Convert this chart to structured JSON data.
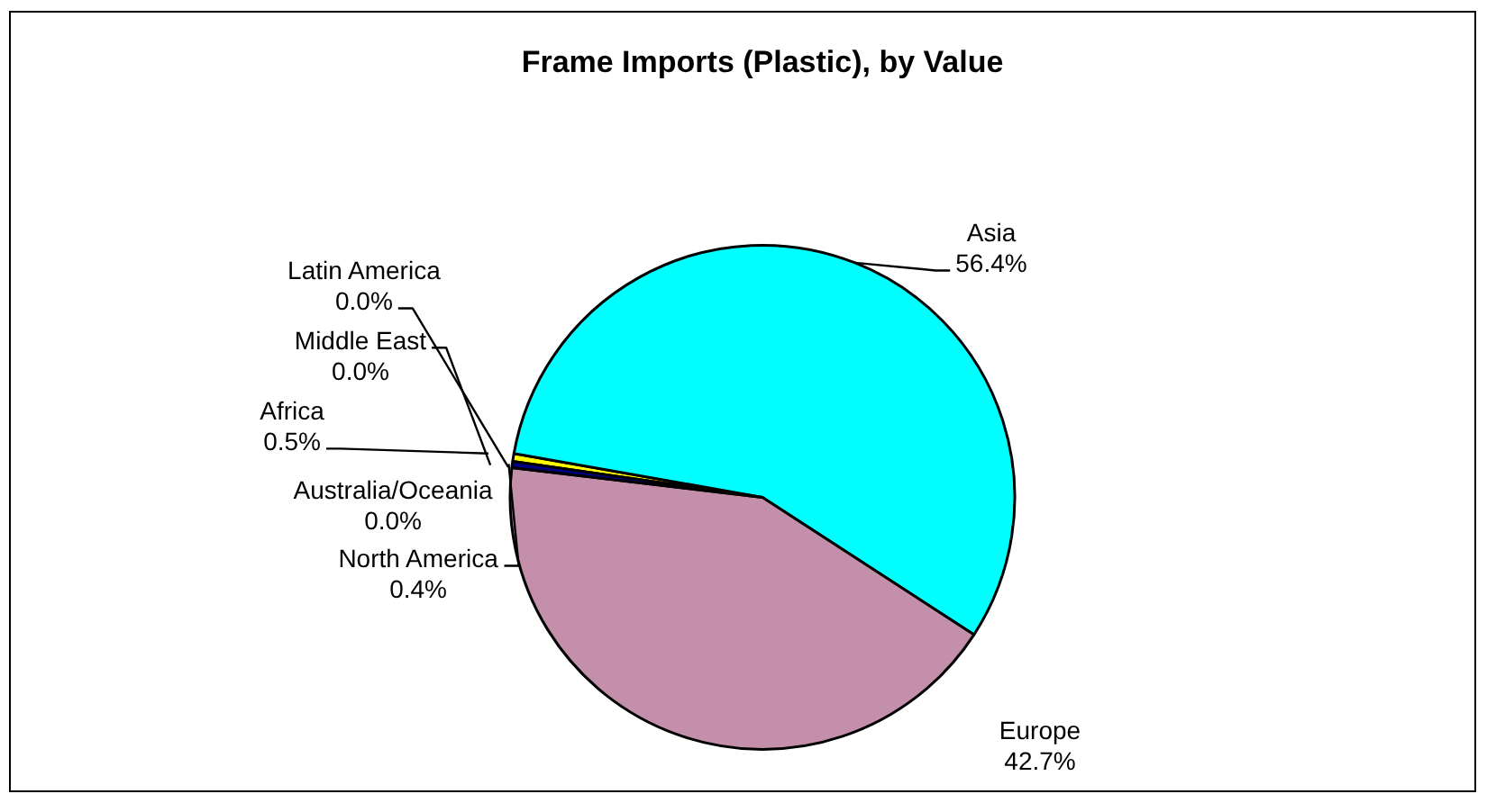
{
  "chart_data": {
    "type": "pie",
    "title": "Frame Imports (Plastic), by Value",
    "categories": [
      "Africa",
      "Asia",
      "Australia/Oceania",
      "Europe",
      "Latin America",
      "Middle East",
      "North America"
    ],
    "values": [
      0.5,
      56.4,
      0.0,
      42.7,
      0.0,
      0.0,
      0.4
    ],
    "colors": [
      "#ffff00",
      "#00ffff",
      "#9999ff",
      "#c48fab",
      "#ff8080",
      "#0066cc",
      "#000080"
    ],
    "value_labels": [
      "0.5%",
      "56.4%",
      "0.0%",
      "42.7%",
      "0.0%",
      "0.0%",
      "0.4%"
    ]
  }
}
